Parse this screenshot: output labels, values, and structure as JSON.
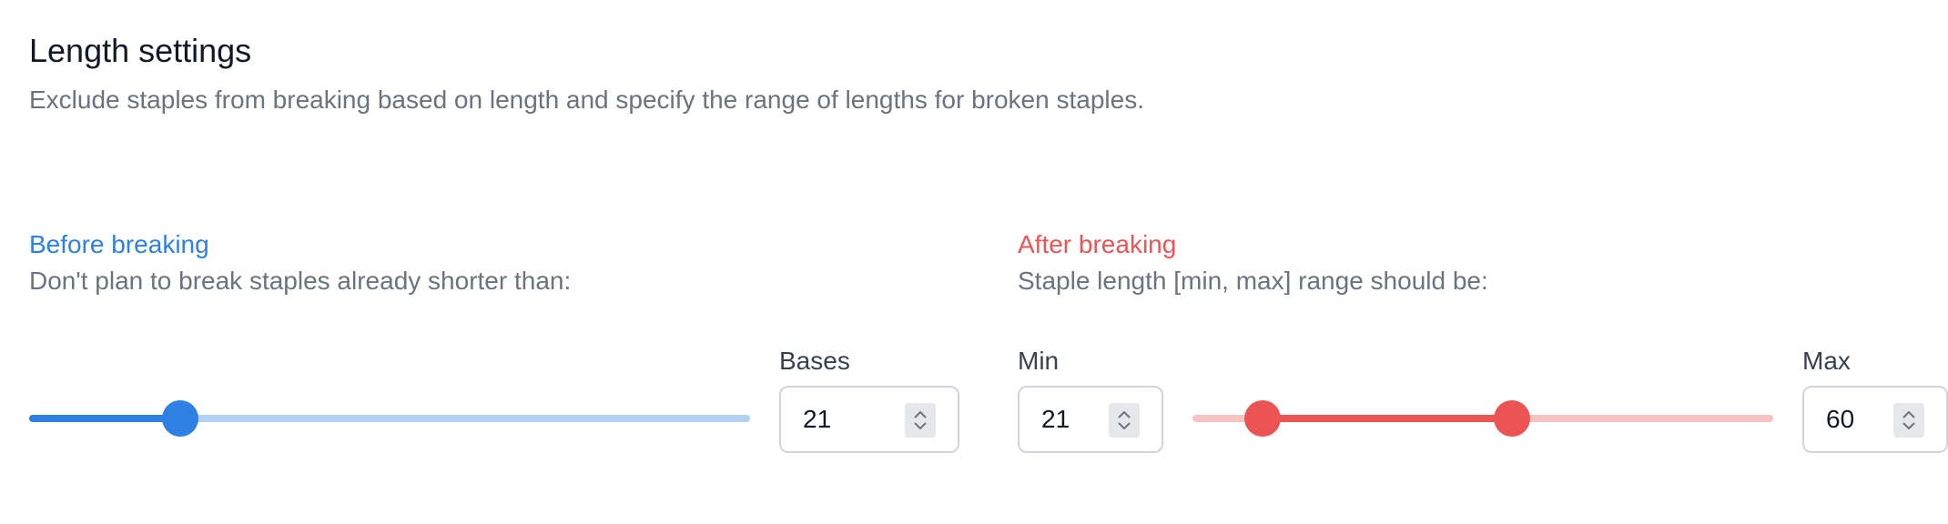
{
  "header": {
    "title": "Length settings",
    "description": "Exclude staples from breaking based on length and specify the range of lengths for broken staples."
  },
  "before": {
    "title": "Before breaking",
    "description": "Don't plan to break staples already shorter than:",
    "bases_label": "Bases",
    "bases_value": "21",
    "slider_fraction": 0.21,
    "color": "#2f80e4",
    "track_light_color": "#b3d1f2"
  },
  "after": {
    "title": "After breaking",
    "description": "Staple length [min, max] range should be:",
    "min_label": "Min",
    "min_value": "21",
    "max_label": "Max",
    "max_value": "60",
    "range_low_fraction": 0.12,
    "range_high_fraction": 0.55,
    "color": "#ec5454",
    "track_light_color": "#f6c2c2"
  }
}
